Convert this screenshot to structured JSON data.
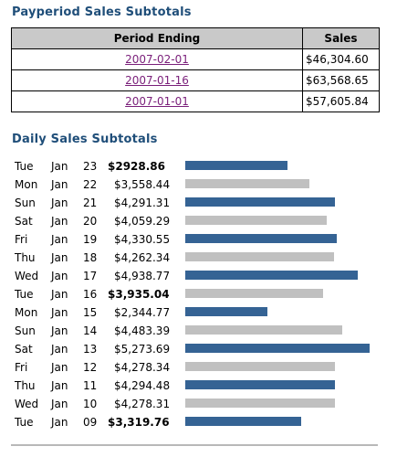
{
  "payperiod": {
    "title": "Payperiod Sales Subtotals",
    "headers": {
      "period": "Period Ending",
      "sales": "Sales"
    },
    "rows": [
      {
        "period": "2007-02-01",
        "sales": "$46,304.60"
      },
      {
        "period": "2007-01-16",
        "sales": "$63,568.65"
      },
      {
        "period": "2007-01-01",
        "sales": "$57,605.84"
      }
    ]
  },
  "daily": {
    "title": "Daily Sales Subtotals",
    "rows": [
      {
        "dow": "Tue",
        "month": "Jan",
        "day": "23",
        "amount": "$2928.86",
        "value": 2928.86,
        "bold": true
      },
      {
        "dow": "Mon",
        "month": "Jan",
        "day": "22",
        "amount": "$3,558.44",
        "value": 3558.44,
        "bold": false
      },
      {
        "dow": "Sun",
        "month": "Jan",
        "day": "21",
        "amount": "$4,291.31",
        "value": 4291.31,
        "bold": false
      },
      {
        "dow": "Sat",
        "month": "Jan",
        "day": "20",
        "amount": "$4,059.29",
        "value": 4059.29,
        "bold": false
      },
      {
        "dow": "Fri",
        "month": "Jan",
        "day": "19",
        "amount": "$4,330.55",
        "value": 4330.55,
        "bold": false
      },
      {
        "dow": "Thu",
        "month": "Jan",
        "day": "18",
        "amount": "$4,262.34",
        "value": 4262.34,
        "bold": false
      },
      {
        "dow": "Wed",
        "month": "Jan",
        "day": "17",
        "amount": "$4,938.77",
        "value": 4938.77,
        "bold": false
      },
      {
        "dow": "Tue",
        "month": "Jan",
        "day": "16",
        "amount": "$3,935.04",
        "value": 3935.04,
        "bold": true
      },
      {
        "dow": "Mon",
        "month": "Jan",
        "day": "15",
        "amount": "$2,344.77",
        "value": 2344.77,
        "bold": false
      },
      {
        "dow": "Sun",
        "month": "Jan",
        "day": "14",
        "amount": "$4,483.39",
        "value": 4483.39,
        "bold": false
      },
      {
        "dow": "Sat",
        "month": "Jan",
        "day": "13",
        "amount": "$5,273.69",
        "value": 5273.69,
        "bold": false
      },
      {
        "dow": "Fri",
        "month": "Jan",
        "day": "12",
        "amount": "$4,278.34",
        "value": 4278.34,
        "bold": false
      },
      {
        "dow": "Thu",
        "month": "Jan",
        "day": "11",
        "amount": "$4,294.48",
        "value": 4294.48,
        "bold": false
      },
      {
        "dow": "Wed",
        "month": "Jan",
        "day": "10",
        "amount": "$4,278.31",
        "value": 4278.31,
        "bold": false
      },
      {
        "dow": "Tue",
        "month": "Jan",
        "day": "09",
        "amount": "$3,319.76",
        "value": 3319.76,
        "bold": true
      }
    ],
    "colors": {
      "primary": "#356394",
      "alternate": "#c0c0c0"
    },
    "scale_max": 5273.69
  }
}
